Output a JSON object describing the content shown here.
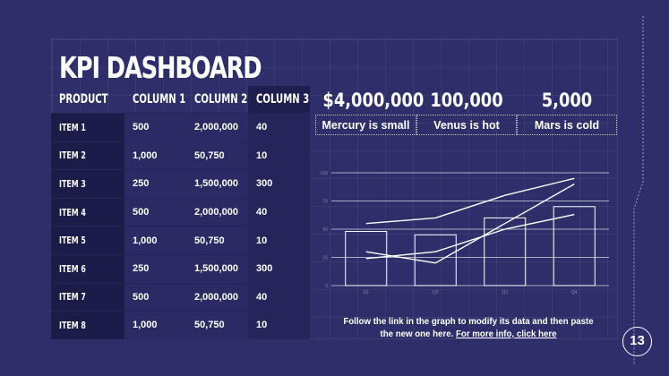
{
  "slide": {
    "title": "KPI DASHBOARD",
    "page_number": "13"
  },
  "table": {
    "headers": [
      "PRODUCT",
      "COLUMN 1",
      "COLUMN 2",
      "COLUMN 3"
    ],
    "rows": [
      [
        "ITEM 1",
        "500",
        "2,000,000",
        "40"
      ],
      [
        "ITEM 2",
        "1,000",
        "50,750",
        "10"
      ],
      [
        "ITEM 3",
        "250",
        "1,500,000",
        "300"
      ],
      [
        "ITEM 4",
        "500",
        "2,000,000",
        "40"
      ],
      [
        "ITEM 5",
        "1,000",
        "50,750",
        "10"
      ],
      [
        "ITEM 6",
        "250",
        "1,500,000",
        "300"
      ],
      [
        "ITEM 7",
        "500",
        "2,000,000",
        "40"
      ],
      [
        "ITEM 8",
        "1,000",
        "50,750",
        "10"
      ]
    ]
  },
  "kpis": [
    {
      "value": "$4,000,000",
      "label": "Mercury is small"
    },
    {
      "value": "100,000",
      "label": "Venus is hot"
    },
    {
      "value": "5,000",
      "label": "Mars is cold"
    }
  ],
  "note": {
    "text": "Follow the link in the graph to modify its data and then paste the new one here.",
    "link": "For more info, click here"
  },
  "chart_data": {
    "type": "bar",
    "categories": [
      "Q1",
      "Q2",
      "Q3",
      "Q4"
    ],
    "ylim": [
      0,
      100
    ],
    "yticks": [
      "0",
      "25",
      "50",
      "75",
      "100"
    ],
    "bars": [
      48,
      45,
      60,
      70
    ],
    "series": [
      {
        "values": [
          55,
          60,
          80,
          95
        ]
      },
      {
        "values": [
          30,
          20,
          55,
          90
        ]
      },
      {
        "values": [
          24,
          30,
          50,
          63
        ]
      }
    ],
    "grid": true,
    "colors": {
      "bars_stroke": "#ffffff",
      "lines": "#ffffff"
    }
  }
}
